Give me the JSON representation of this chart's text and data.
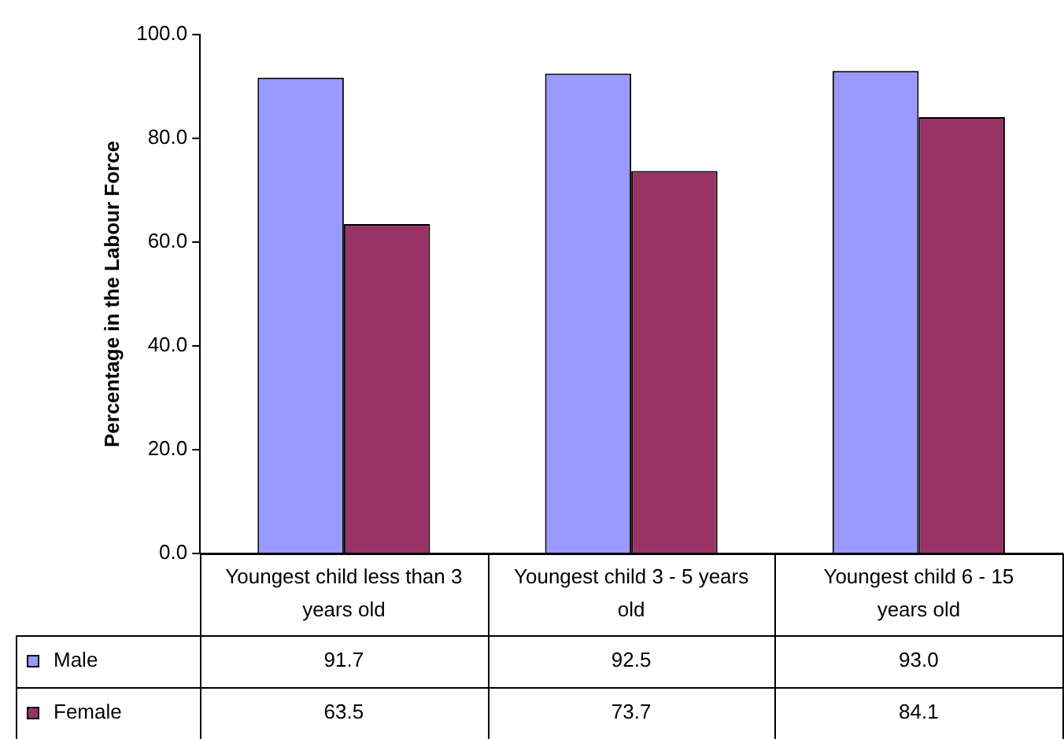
{
  "chart_data": {
    "type": "bar",
    "ylabel": "Percentage in the Labour Force",
    "categories": [
      "Youngest child less than 3 years old",
      "Youngest child 3 - 5 years old",
      "Youngest child 6 - 15 years old"
    ],
    "series": [
      {
        "name": "Male",
        "color": "#9999ff",
        "values": [
          91.7,
          92.5,
          93.0
        ],
        "value_labels": [
          "91.7",
          "92.5",
          "93.0"
        ]
      },
      {
        "name": "Female",
        "color": "#993366",
        "values": [
          63.5,
          73.7,
          84.1
        ],
        "value_labels": [
          "63.5",
          "73.7",
          "84.1"
        ]
      }
    ],
    "ylim": [
      0,
      100
    ],
    "yticks": [
      {
        "value": 0,
        "label": "0.0"
      },
      {
        "value": 20,
        "label": "20.0"
      },
      {
        "value": 40,
        "label": "40.0"
      },
      {
        "value": 60,
        "label": "60.0"
      },
      {
        "value": 80,
        "label": "80.0"
      },
      {
        "value": 100,
        "label": "100.0"
      }
    ],
    "grid": false,
    "legend": "bottom"
  }
}
